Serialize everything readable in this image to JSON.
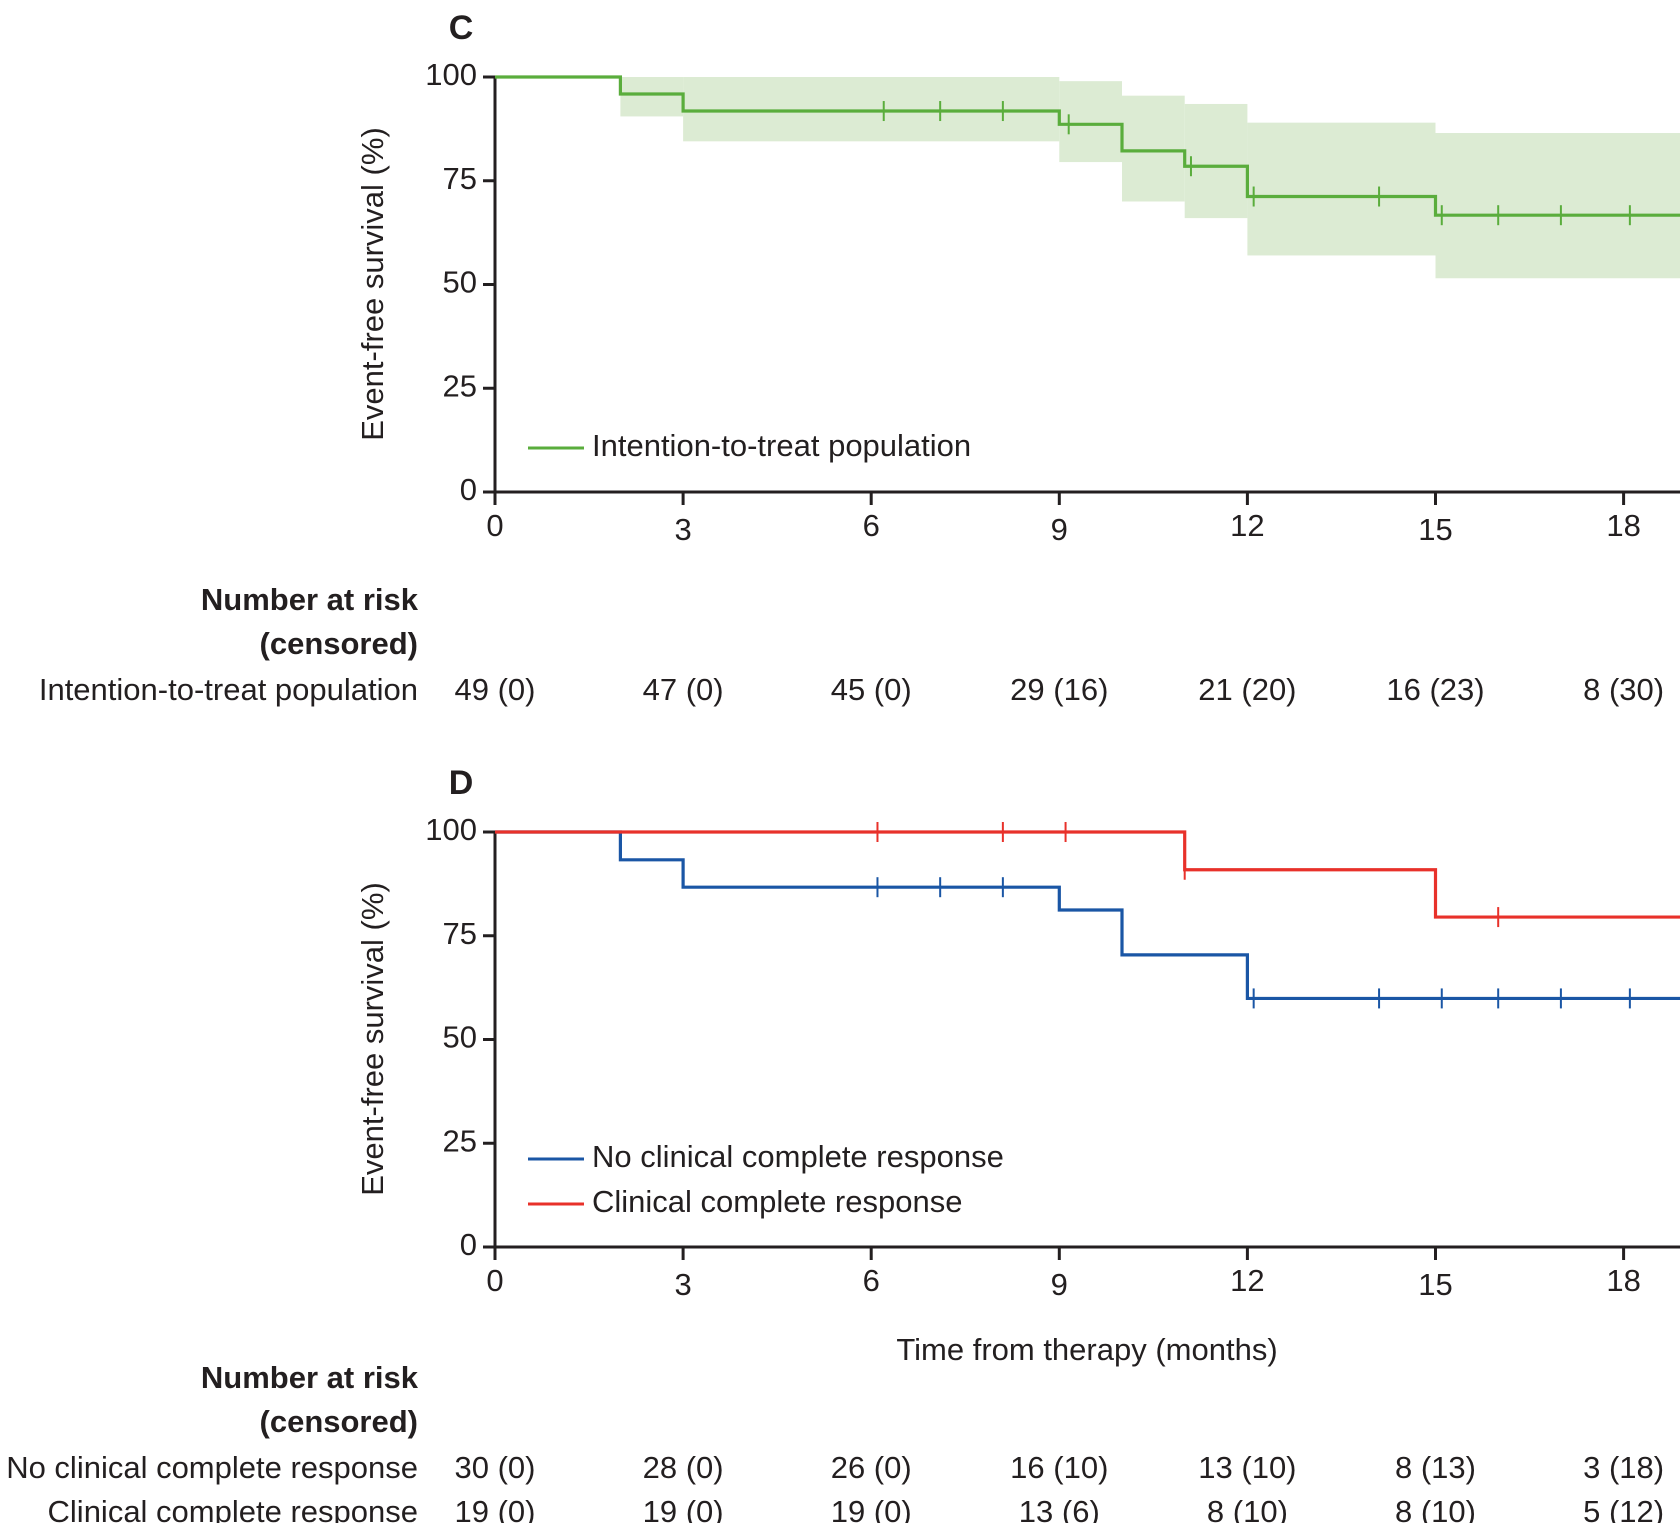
{
  "chart_data": [
    {
      "type": "line",
      "panel_label": "C",
      "title": "",
      "xlabel": "",
      "ylabel": "Event-free survival (%)",
      "xlim": [
        0,
        19.1
      ],
      "ylim": [
        0,
        100
      ],
      "xticks": [
        0,
        3,
        6,
        9,
        12,
        15,
        18
      ],
      "yticks": [
        0,
        25,
        50,
        75,
        100
      ],
      "legend_position": "bottom-left",
      "series": [
        {
          "name": "Intention-to-treat population",
          "color": "#5aad3c",
          "band_color": "#dcebd3",
          "steps": [
            [
              0,
              100
            ],
            [
              2,
              95.9
            ],
            [
              3,
              91.8
            ],
            [
              9,
              88.6
            ],
            [
              10,
              82.2
            ],
            [
              11,
              78.5
            ],
            [
              12,
              71.2
            ],
            [
              15,
              66.7
            ]
          ],
          "ci": [
            [
              2,
              3,
              90.5,
              100
            ],
            [
              3,
              9,
              84.5,
              100
            ],
            [
              9,
              10,
              79.5,
              99
            ],
            [
              10,
              11,
              70,
              95.5
            ],
            [
              11,
              12,
              66,
              93.5
            ],
            [
              12,
              15,
              57,
              89
            ],
            [
              15,
              19.1,
              51.5,
              86.5
            ]
          ],
          "censored": [
            6.2,
            7.1,
            8.1,
            9.15,
            11.1,
            12.1,
            14.1,
            15.1,
            16.0,
            17.0,
            18.1
          ]
        }
      ],
      "risk_table": {
        "title": "Number at risk",
        "subtitle": "(censored)",
        "rows": [
          {
            "label": "Intention-to-treat population",
            "values": [
              "49 (0)",
              "47 (0)",
              "45 (0)",
              "29 (16)",
              "21 (20)",
              "16 (23)",
              "8 (30)"
            ]
          }
        ]
      }
    },
    {
      "type": "line",
      "panel_label": "D",
      "title": "",
      "xlabel": "Time from therapy (months)",
      "ylabel": "Event-free survival (%)",
      "xlim": [
        0,
        19.1
      ],
      "ylim": [
        0,
        100
      ],
      "xticks": [
        0,
        3,
        6,
        9,
        12,
        15,
        18
      ],
      "yticks": [
        0,
        25,
        50,
        75,
        100
      ],
      "legend_position": "bottom-left",
      "series": [
        {
          "name": "No clinical complete response",
          "color": "#1a56a5",
          "steps": [
            [
              0,
              100
            ],
            [
              2,
              93.3
            ],
            [
              3,
              86.7
            ],
            [
              9,
              81.2
            ],
            [
              10,
              70.4
            ],
            [
              12,
              59.9
            ]
          ],
          "censored": [
            6.1,
            7.1,
            8.1,
            12.1,
            14.1,
            15.1,
            16.0,
            17.0,
            18.1
          ]
        },
        {
          "name": "Clinical complete response",
          "color": "#e8312a",
          "steps": [
            [
              0,
              100
            ],
            [
              11,
              90.9
            ],
            [
              15,
              79.5
            ]
          ],
          "censored": [
            6.1,
            8.1,
            9.1,
            11.0,
            16.0
          ]
        }
      ],
      "risk_table": {
        "title": "Number at risk",
        "subtitle": "(censored)",
        "rows": [
          {
            "label": "No clinical complete response",
            "values": [
              "30 (0)",
              "28 (0)",
              "26 (0)",
              "16 (10)",
              "13 (10)",
              "8 (13)",
              "3 (18)"
            ]
          },
          {
            "label": "Clinical complete response",
            "values": [
              "19 (0)",
              "19 (0)",
              "19 (0)",
              "13 (6)",
              "8 (10)",
              "8 (10)",
              "5 (12)"
            ]
          }
        ]
      }
    }
  ]
}
